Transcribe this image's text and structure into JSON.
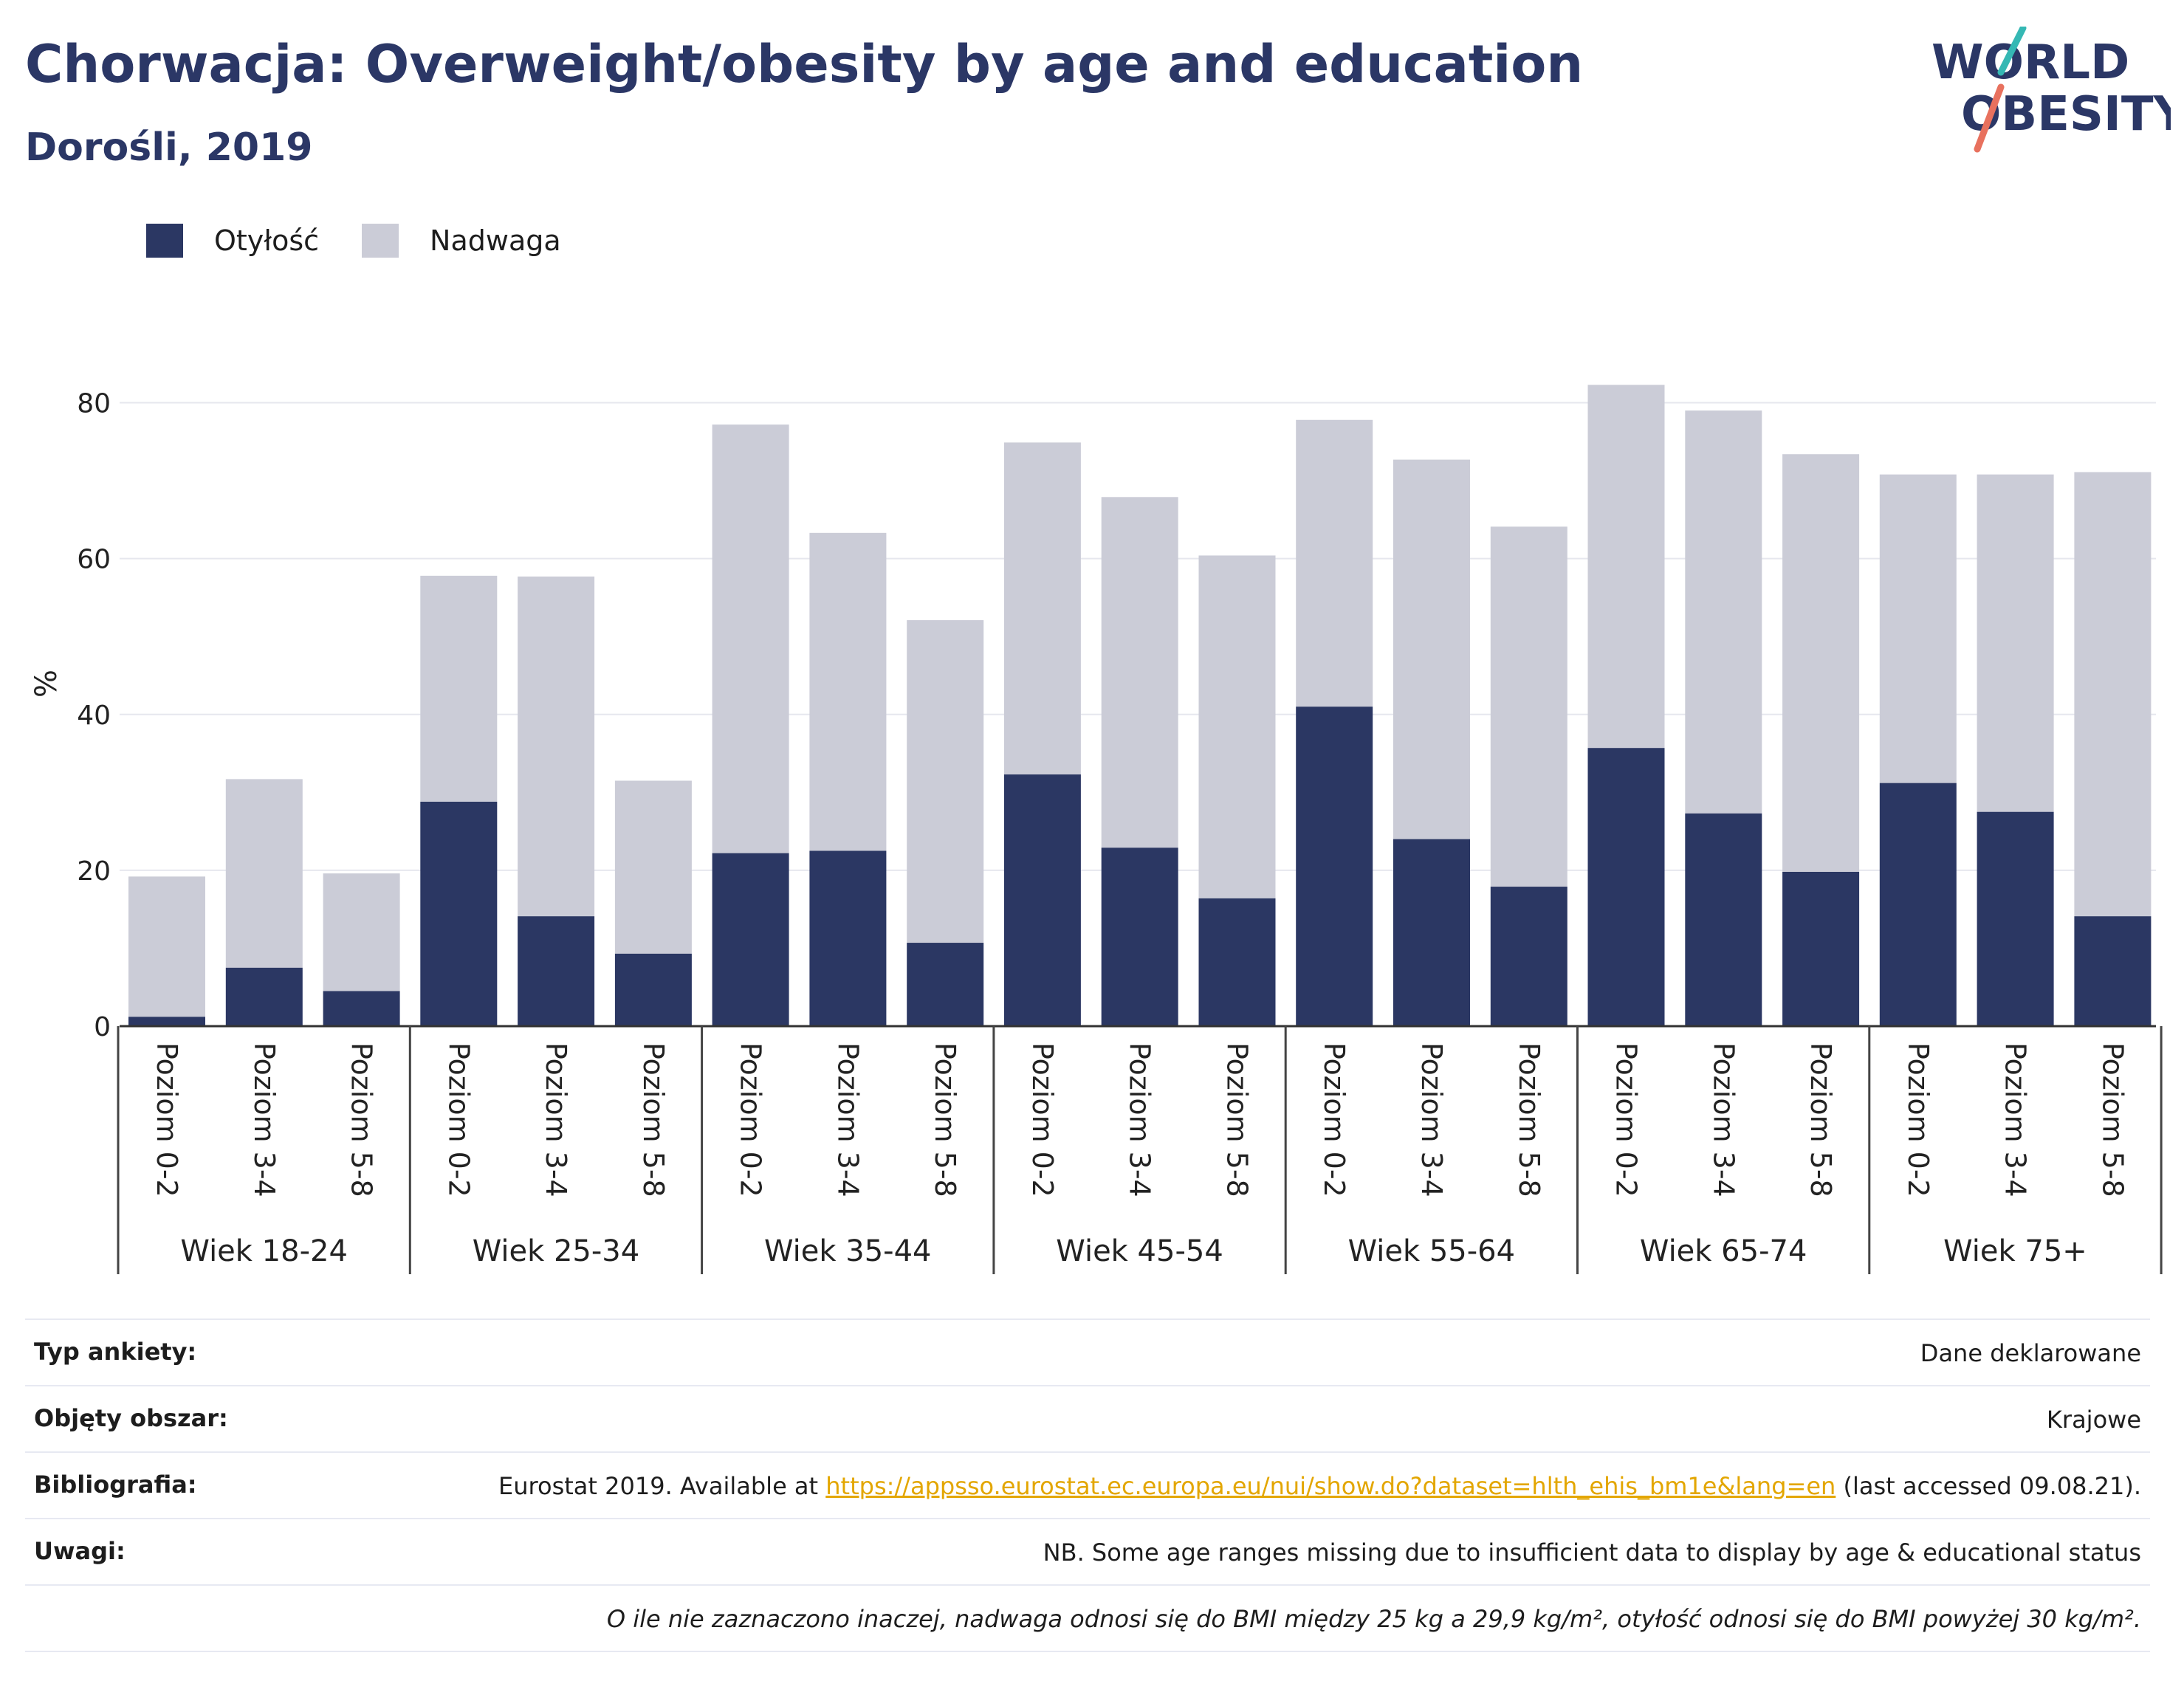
{
  "header": {
    "title": "Chorwacja: Overweight/obesity by age and education",
    "subtitle": "Dorośli, 2019"
  },
  "logo": {
    "line1": "WORLD",
    "line2": "OBESITY"
  },
  "legend": {
    "obesity_label": "Otyłość",
    "overweight_label": "Nadwaga"
  },
  "colors": {
    "obesity": "#2b3763",
    "overweight": "#cbccd7",
    "accent_teal": "#35b8b4",
    "accent_coral": "#e8715e",
    "title": "#2b3766"
  },
  "chart_data": {
    "type": "bar",
    "stacked": true,
    "ylabel": "%",
    "ylim": [
      0,
      90
    ],
    "yticks": [
      0,
      20,
      40,
      60,
      80
    ],
    "grid": true,
    "legend_position": "top-left",
    "groups": [
      "Wiek 18-24",
      "Wiek 25-34",
      "Wiek 35-44",
      "Wiek 45-54",
      "Wiek 55-64",
      "Wiek 65-74",
      "Wiek 75+"
    ],
    "categories": [
      "Poziom 0-2",
      "Poziom 3-4",
      "Poziom 5-8"
    ],
    "series": [
      {
        "name": "Otyłość",
        "values": [
          [
            1.2,
            7.5,
            4.5
          ],
          [
            28.8,
            14.1,
            9.3
          ],
          [
            22.2,
            22.5,
            10.7
          ],
          [
            32.3,
            22.9,
            16.4
          ],
          [
            41.0,
            24.0,
            17.9
          ],
          [
            35.7,
            27.3,
            19.8
          ],
          [
            31.2,
            27.5,
            14.1
          ]
        ]
      },
      {
        "name": "Nadwaga",
        "values": [
          [
            18.0,
            24.2,
            15.1
          ],
          [
            29.0,
            43.6,
            22.2
          ],
          [
            55.0,
            40.8,
            41.4
          ],
          [
            42.6,
            45.0,
            44.0
          ],
          [
            36.8,
            48.7,
            46.2
          ],
          [
            46.6,
            51.7,
            53.6
          ],
          [
            39.6,
            43.3,
            57.0
          ]
        ]
      }
    ]
  },
  "info": {
    "survey_type_label": "Typ ankiety:",
    "survey_type_value": "Dane deklarowane",
    "area_label": "Objęty obszar:",
    "area_value": "Krajowe",
    "bibliography_label": "Bibliografia:",
    "bibliography_prefix": "Eurostat 2019. Available at ",
    "bibliography_link": "https://appsso.eurostat.ec.europa.eu/nui/show.do?dataset=hlth_ehis_bm1e&lang=en",
    "bibliography_suffix": " (last accessed 09.08.21).",
    "notes_label": "Uwagi:",
    "notes_value": "NB. Some age ranges missing due to insufficient data to display by age & educational status",
    "definition_note": "O ile nie zaznaczono inaczej, nadwaga odnosi się do BMI między 25 kg a 29,9 kg/m², otyłość odnosi się do BMI powyżej 30 kg/m²."
  }
}
